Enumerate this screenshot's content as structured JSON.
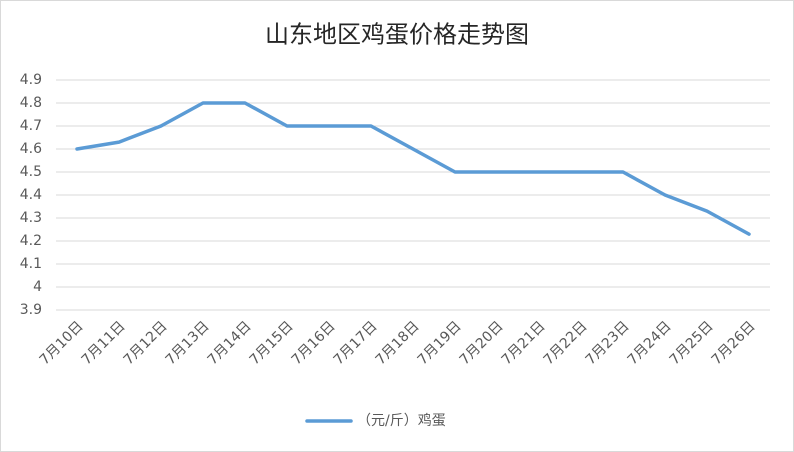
{
  "chart_data": {
    "type": "line",
    "title": "山东地区鸡蛋价格走势图",
    "categories": [
      "7月10日",
      "7月11日",
      "7月12日",
      "7月13日",
      "7月14日",
      "7月15日",
      "7月16日",
      "7月17日",
      "7月18日",
      "7月19日",
      "7月20日",
      "7月21日",
      "7月22日",
      "7月23日",
      "7月24日",
      "7月25日",
      "7月26日"
    ],
    "series": [
      {
        "name": "（元/斤）鸡蛋",
        "color": "#5b9bd5",
        "values": [
          4.6,
          4.63,
          4.7,
          4.8,
          4.8,
          4.7,
          4.7,
          4.7,
          4.6,
          4.5,
          4.5,
          4.5,
          4.5,
          4.5,
          4.4,
          4.33,
          4.23
        ]
      }
    ],
    "ylim": [
      3.9,
      4.9
    ],
    "yticks": [
      3.9,
      4,
      4.1,
      4.2,
      4.3,
      4.4,
      4.5,
      4.6,
      4.7,
      4.8,
      4.9
    ],
    "grid": true,
    "legend": "bottom"
  }
}
